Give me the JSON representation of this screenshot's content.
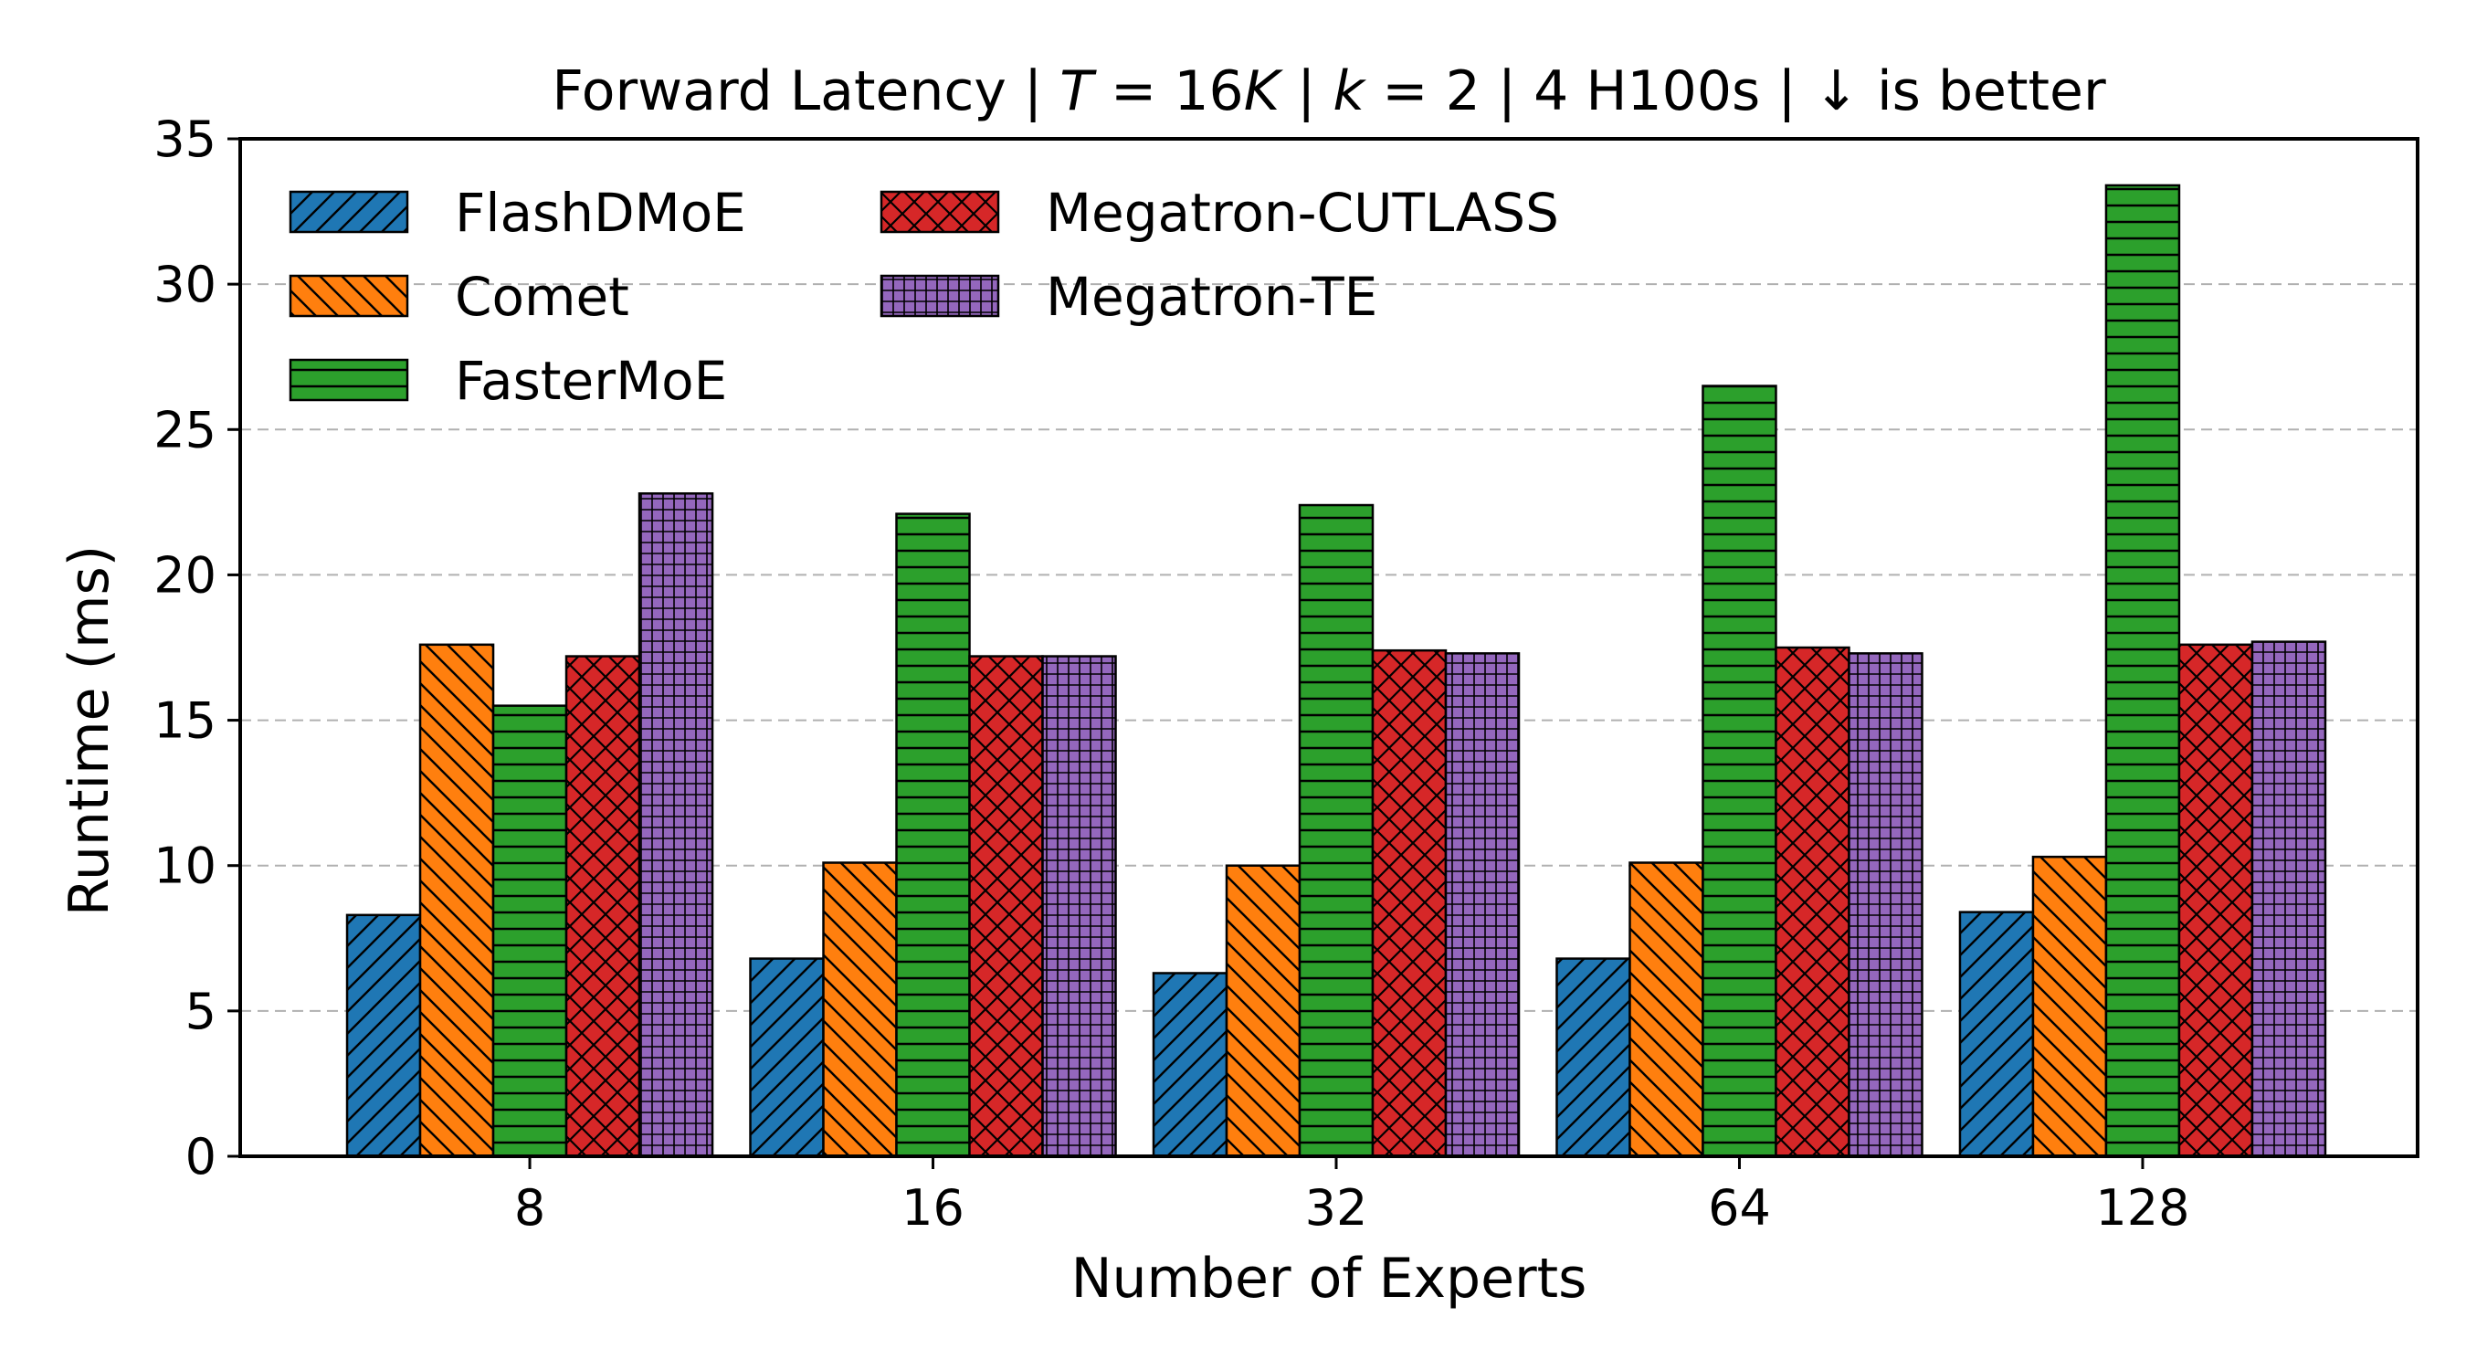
{
  "chart_data": {
    "type": "bar",
    "title": "Forward Latency | T = 16K | k = 2 | 4 H100s | ↓ is better",
    "xlabel": "Number of Experts",
    "ylabel": "Runtime (ms)",
    "ylim": [
      0,
      35
    ],
    "yticks": [
      "0",
      "5",
      "10",
      "15",
      "20",
      "25",
      "30",
      "35"
    ],
    "grid": "horizontal dashed",
    "legend_position": "top-left",
    "categories": [
      "8",
      "16",
      "32",
      "64",
      "128"
    ],
    "series": [
      {
        "name": "FlashDMoE",
        "color": "#1f77b4",
        "hatch": "diag-forward",
        "values": [
          8.3,
          6.8,
          6.3,
          6.8,
          8.4
        ]
      },
      {
        "name": "Comet",
        "color": "#ff7f0e",
        "hatch": "diag-back",
        "values": [
          17.6,
          10.1,
          10.0,
          10.1,
          10.3
        ]
      },
      {
        "name": "FasterMoE",
        "color": "#2ca02c",
        "hatch": "horizontal",
        "values": [
          15.5,
          22.1,
          22.4,
          26.5,
          33.4
        ]
      },
      {
        "name": "Megatron-CUTLASS",
        "color": "#d62728",
        "hatch": "crosshatch",
        "values": [
          17.2,
          17.2,
          17.4,
          17.5,
          17.6
        ]
      },
      {
        "name": "Megatron-TE",
        "color": "#9467bd",
        "hatch": "grid",
        "values": [
          22.8,
          17.2,
          17.3,
          17.3,
          17.7
        ]
      }
    ]
  }
}
